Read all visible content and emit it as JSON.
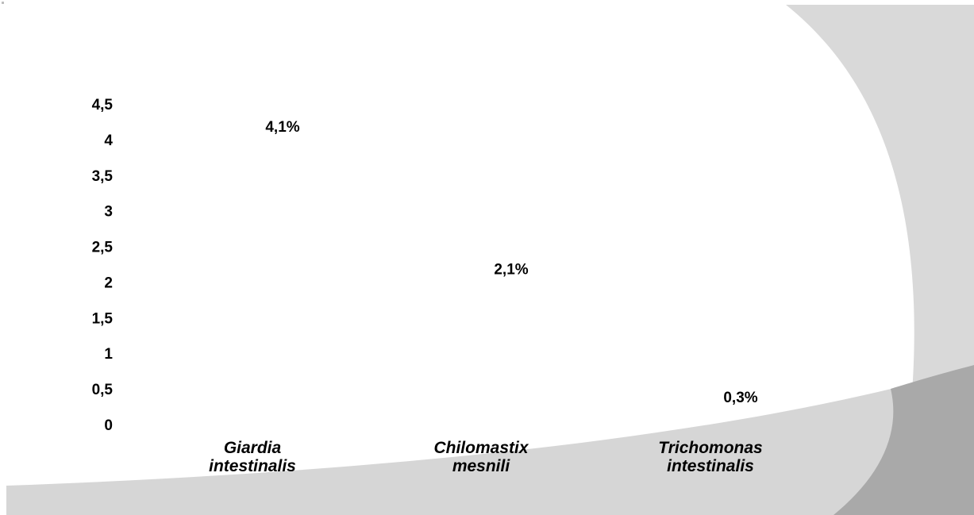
{
  "chart_data": {
    "type": "bar",
    "categories": [
      [
        "Giardia",
        "intestinalis"
      ],
      [
        "Chilomastix",
        "mesnili"
      ],
      [
        "Trichomonas",
        "intestinalis"
      ]
    ],
    "values": [
      4.1,
      2.1,
      0.3
    ],
    "data_labels": [
      "4,1%",
      "2,1%",
      "0,3%"
    ],
    "y_ticks": [
      "0",
      "0,5",
      "1",
      "1,5",
      "2",
      "2,5",
      "3",
      "3,5",
      "4",
      "4,5"
    ],
    "ylim": [
      0,
      4.5
    ],
    "grid": false,
    "bars_visible": false,
    "colors": {
      "background": "#ffffff",
      "swoosh_light": "#d6d6d6",
      "swoosh_dark": "#a9a9a9",
      "text": "#000000"
    }
  }
}
